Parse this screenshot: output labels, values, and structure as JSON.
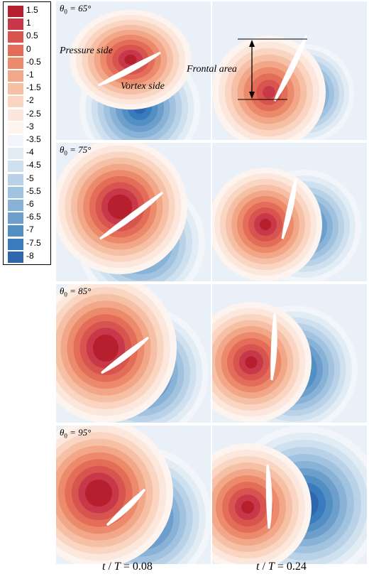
{
  "legend": {
    "levels": [
      "1.5",
      "1",
      "0.5",
      "0",
      "-0.5",
      "-1",
      "-1.5",
      "-2",
      "-2.5",
      "-3",
      "-3.5",
      "-4",
      "-4.5",
      "-5",
      "-5.5",
      "-6",
      "-6.5",
      "-7",
      "-7.5",
      "-8"
    ],
    "colors": [
      "#b51f2e",
      "#c9384a",
      "#d8544e",
      "#e36d58",
      "#ec8a6c",
      "#f2a788",
      "#f6c0a6",
      "#f9d5c2",
      "#fbe7dc",
      "#fdf4ef",
      "#f2f6fa",
      "#e2ecf5",
      "#cfe0ef",
      "#b9d2e8",
      "#a1c3e0",
      "#88b2d6",
      "#6d9ecc",
      "#5290c4",
      "#3a7bbd",
      "#2f67ad"
    ]
  },
  "panels": {
    "r0c0": {
      "theta": "65°",
      "pressure_side": "Pressure side",
      "vortex_side": "Vortex side"
    },
    "r0c1": {
      "frontal_area": "Frontal area"
    },
    "r1c0": {
      "theta": "75°"
    },
    "r2c0": {
      "theta": "85°"
    },
    "r3c0": {
      "theta": "95°"
    }
  },
  "columns": {
    "left": {
      "t": "t",
      "slash": " / ",
      "T": "T",
      "eq": " = 0.08"
    },
    "right": {
      "t": "t",
      "slash": " / ",
      "T": "T",
      "eq": " = 0.24"
    }
  }
}
